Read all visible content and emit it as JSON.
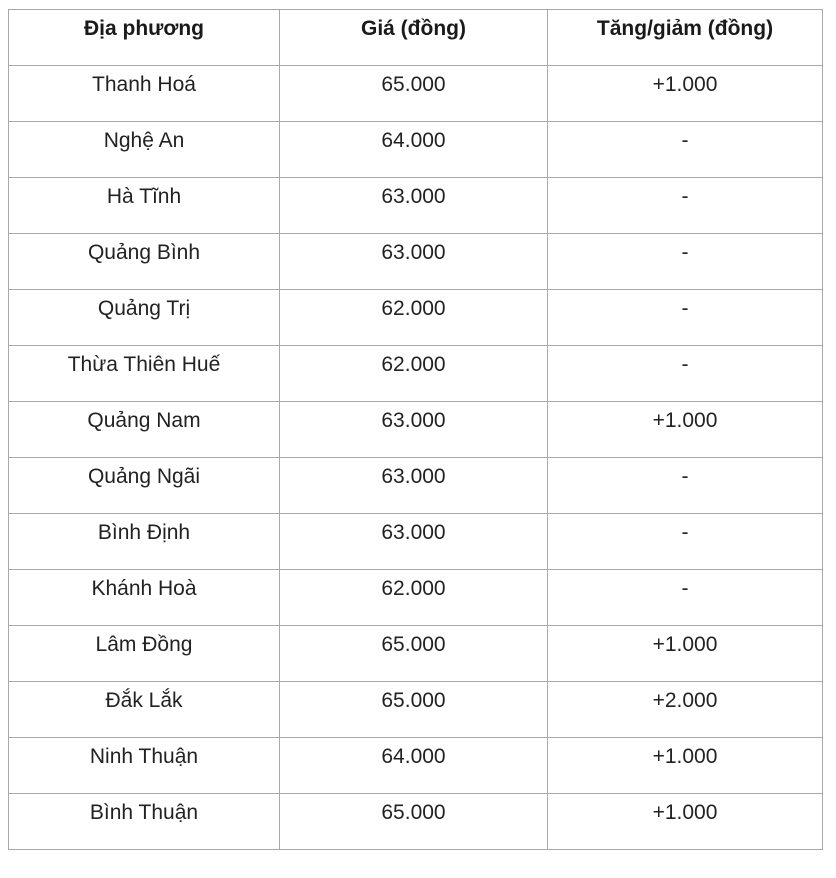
{
  "table": {
    "headers": [
      "Địa phương",
      "Giá (đồng)",
      "Tăng/giảm (đồng)"
    ],
    "rows": [
      [
        "Thanh Hoá",
        "65.000",
        "+1.000"
      ],
      [
        "Nghệ An",
        "64.000",
        "-"
      ],
      [
        "Hà Tĩnh",
        "63.000",
        "-"
      ],
      [
        "Quảng Bình",
        "63.000",
        "-"
      ],
      [
        "Quảng Trị",
        "62.000",
        "-"
      ],
      [
        "Thừa Thiên Huế",
        "62.000",
        "-"
      ],
      [
        "Quảng Nam",
        "63.000",
        "+1.000"
      ],
      [
        "Quảng Ngãi",
        "63.000",
        "-"
      ],
      [
        "Bình Định",
        "63.000",
        "-"
      ],
      [
        "Khánh Hoà",
        "62.000",
        "-"
      ],
      [
        "Lâm Đồng",
        "65.000",
        "+1.000"
      ],
      [
        "Đắk Lắk",
        "65.000",
        "+2.000"
      ],
      [
        "Ninh Thuận",
        "64.000",
        "+1.000"
      ],
      [
        "Bình Thuận",
        "65.000",
        "+1.000"
      ]
    ]
  }
}
